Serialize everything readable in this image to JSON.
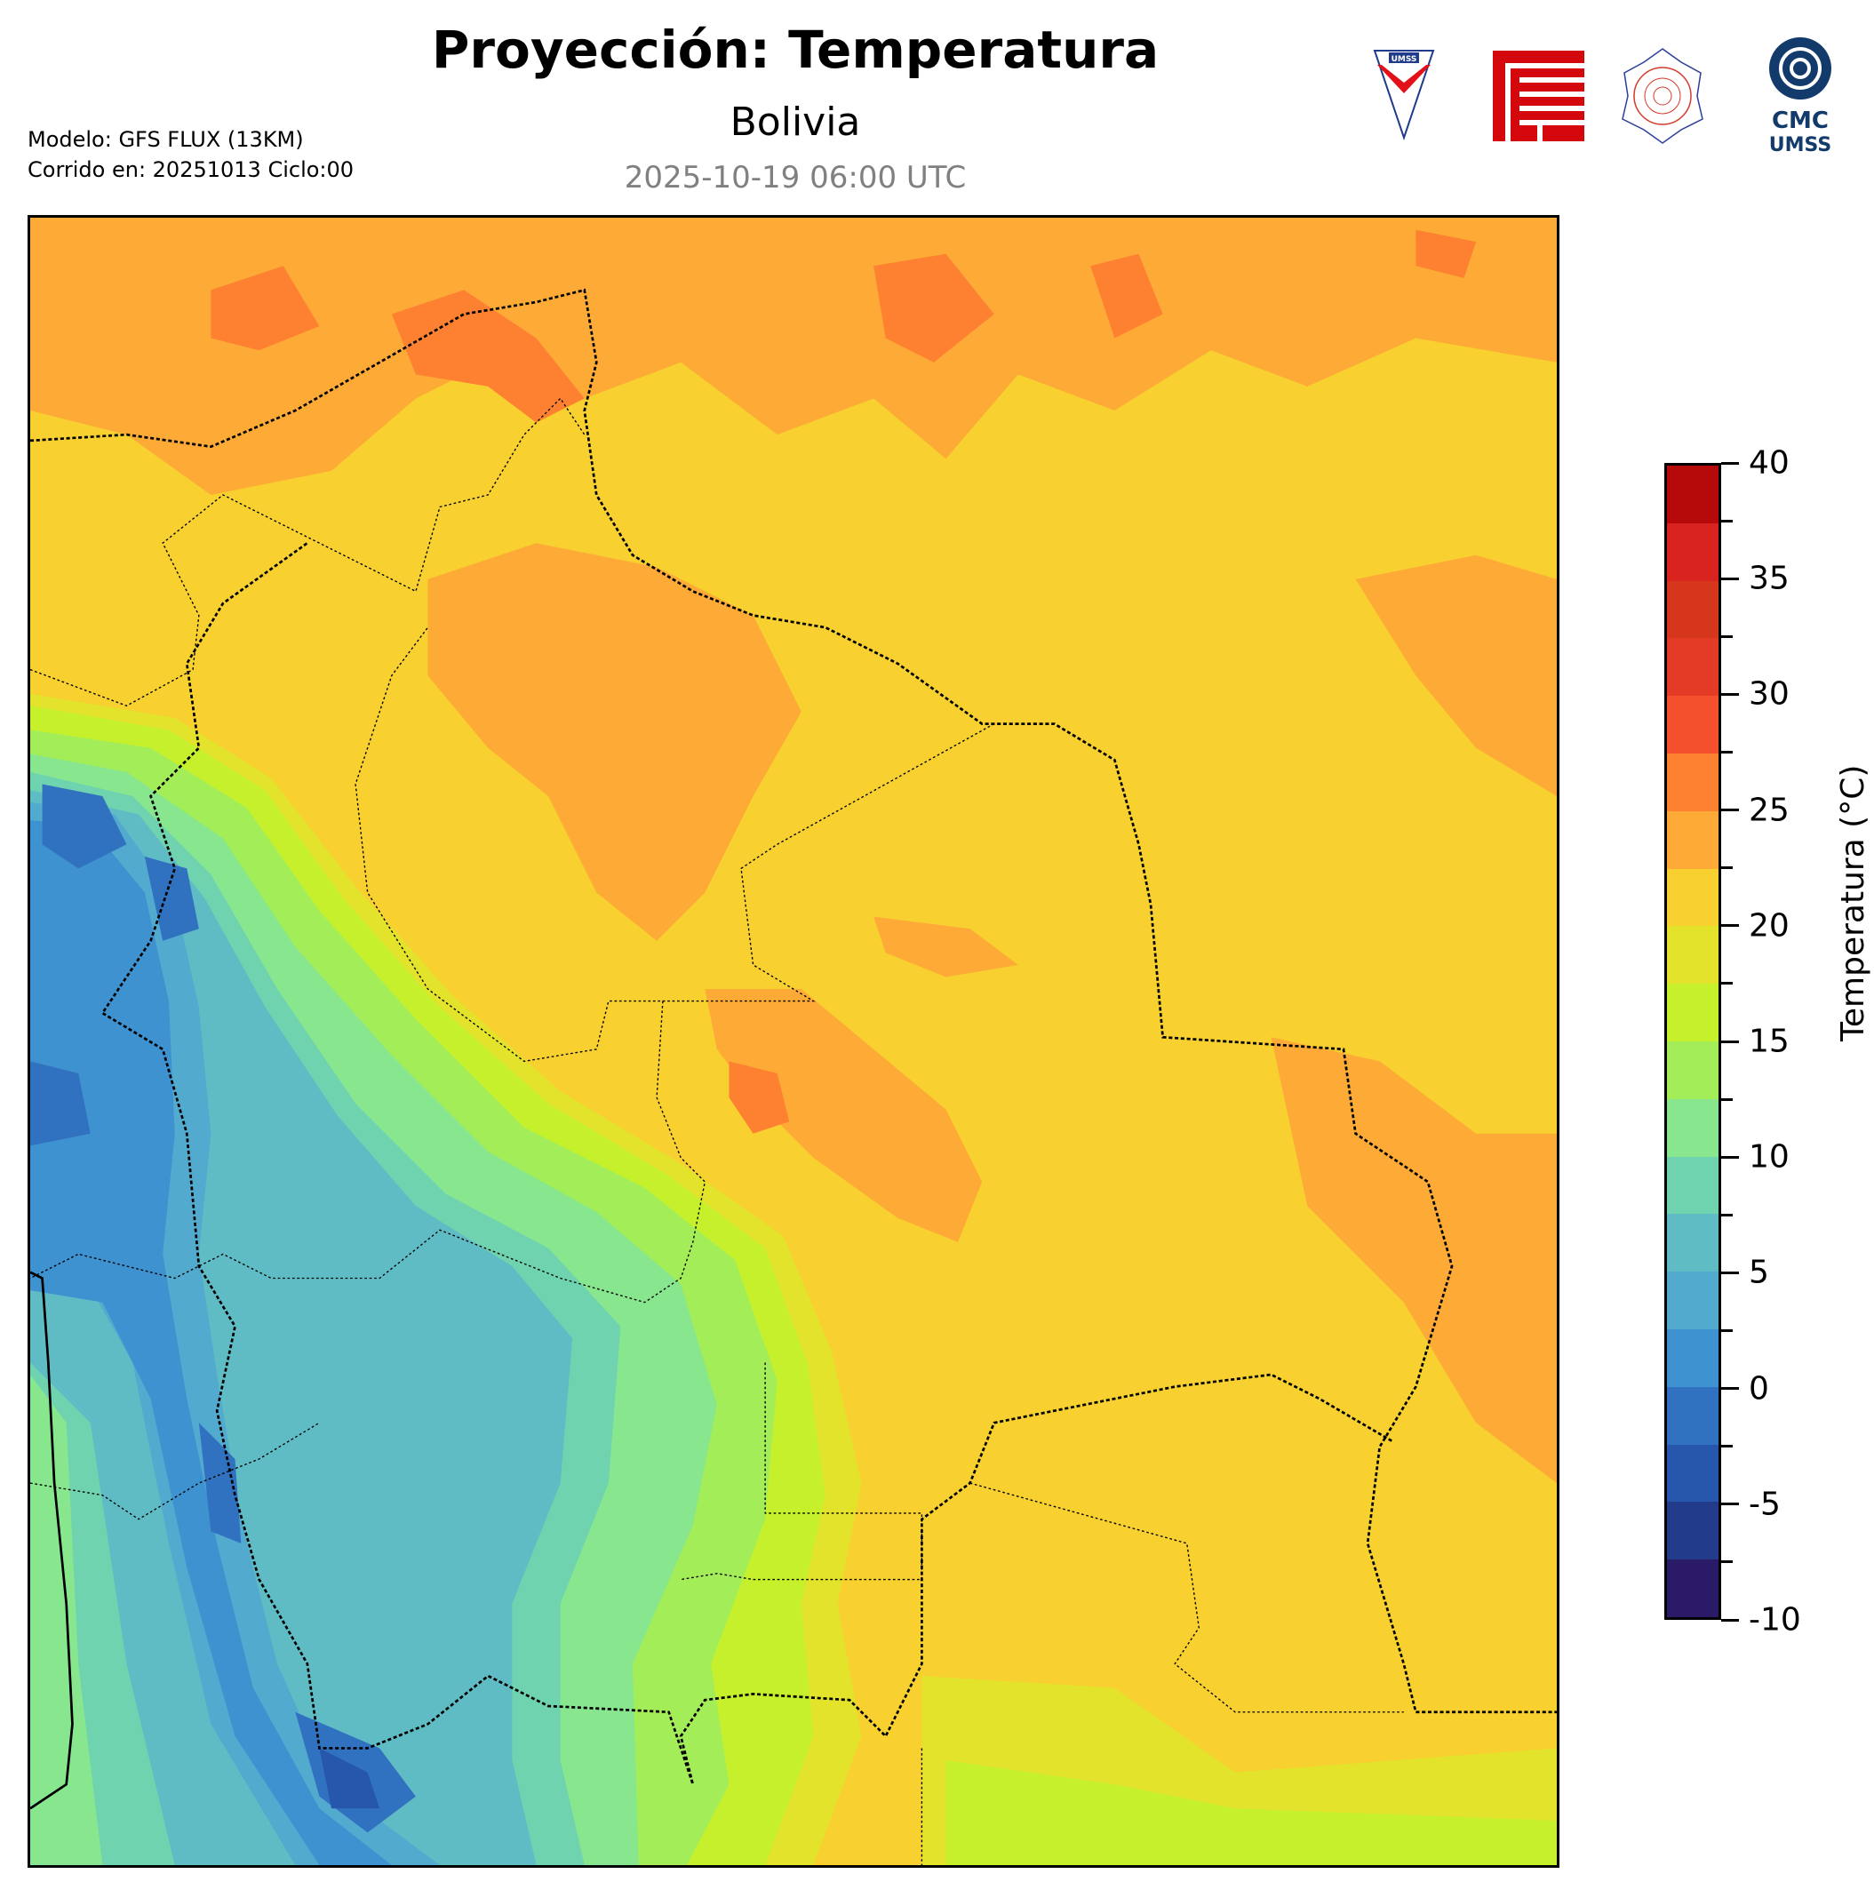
{
  "header": {
    "title": "Proyección: Temperatura",
    "subtitle": "Bolivia",
    "valid_time": "2025-10-19 06:00 UTC",
    "model_line": "Modelo: GFS FLUX (13KM)",
    "run_line": "Corrido en: 20251013 Ciclo:00"
  },
  "logos": [
    {
      "name": "umss-shield",
      "text": "UMSS"
    },
    {
      "name": "fcyt-logo",
      "text": ""
    },
    {
      "name": "departamento-de-fisica-seal",
      "text": "Departamento de Física"
    },
    {
      "name": "cmc-umss-logo",
      "text": "CMC UMSS"
    }
  ],
  "colorbar": {
    "label": "Temperatura (°C)",
    "min": -10,
    "max": 40,
    "step": 2.5,
    "tick_labels": [
      "40",
      "35",
      "30",
      "25",
      "20",
      "15",
      "10",
      "5",
      "0",
      "-5",
      "-10"
    ],
    "colors_top_to_bottom": [
      "#b50a09",
      "#d9231e",
      "#d6361c",
      "#e43b26",
      "#f5502d",
      "#fe8131",
      "#fdaa36",
      "#f8d030",
      "#e2e32a",
      "#c6f02c",
      "#a3ee58",
      "#87e68e",
      "#6fd3b0",
      "#60bcc4",
      "#52aacf",
      "#3e92d0",
      "#3172c0",
      "#2756ad",
      "#233b8b",
      "#2b1a68"
    ]
  },
  "map": {
    "region": "Bolivia",
    "variable": "Temperatura"
  }
}
